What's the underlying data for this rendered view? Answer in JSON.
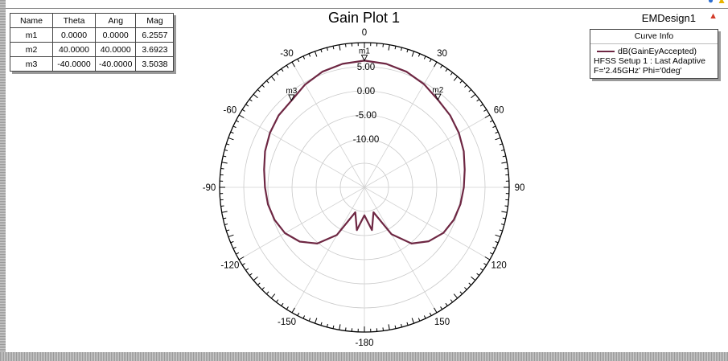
{
  "header": {
    "title": "Gain Plot 1",
    "design_name": "EMDesign1"
  },
  "marker_table": {
    "columns": [
      "Name",
      "Theta",
      "Ang",
      "Mag"
    ],
    "rows": [
      [
        "m1",
        "0.0000",
        "0.0000",
        "6.2557"
      ],
      [
        "m2",
        "40.0000",
        "40.0000",
        "3.6923"
      ],
      [
        "m3",
        "-40.0000",
        "-40.0000",
        "3.5038"
      ]
    ]
  },
  "legend": {
    "header": "Curve Info",
    "trace_name": "dB(GainEyAccepted)",
    "setup_line": "HFSS Setup 1 : Last Adaptive",
    "sweep_line": "F='2.45GHz' Phi='0deg'"
  },
  "chart_data": {
    "type": "polar",
    "title": "Gain Plot 1",
    "angle_unit": "deg",
    "angle_zero": "top",
    "angle_direction": "clockwise",
    "angle_ticks": [
      "0",
      "30",
      "60",
      "90",
      "120",
      "150",
      "-180",
      "-150",
      "-120",
      "-90",
      "-60",
      "-30"
    ],
    "angle_tick_values": [
      0,
      30,
      60,
      90,
      120,
      150,
      180,
      -150,
      -120,
      -90,
      -60,
      -30
    ],
    "radial_ticks": [
      "5.00",
      "0.00",
      "-5.00",
      "-10.00"
    ],
    "radial_tick_values": [
      5,
      0,
      -5,
      -10
    ],
    "rlim": [
      -20,
      10
    ],
    "grid": true,
    "series": [
      {
        "name": "dB(GainEyAccepted)",
        "color": "#6e2743",
        "theta": [
          -180,
          -170,
          -160,
          -150,
          -140,
          -130,
          -120,
          -110,
          -100,
          -90,
          -80,
          -70,
          -60,
          -50,
          -40,
          -30,
          -20,
          -10,
          0,
          10,
          20,
          30,
          40,
          50,
          60,
          70,
          80,
          90,
          100,
          110,
          120,
          130,
          140,
          150,
          160,
          170,
          180
        ],
        "gain_db": [
          -14.2,
          -11.0,
          -14.5,
          -8.6,
          -4.8,
          -2.5,
          -1.0,
          -0.2,
          0.3,
          0.6,
          1.1,
          1.9,
          2.6,
          3.2,
          3.5,
          4.6,
          5.5,
          6.0,
          6.26,
          6.0,
          5.5,
          4.7,
          3.69,
          3.2,
          2.6,
          1.9,
          1.1,
          0.6,
          0.2,
          -0.3,
          -1.1,
          -2.6,
          -4.8,
          -8.8,
          -14.5,
          -11.0,
          -14.2
        ]
      }
    ],
    "markers": [
      {
        "name": "m1",
        "theta": 0.0,
        "mag": 6.2557
      },
      {
        "name": "m2",
        "theta": 40.0,
        "mag": 3.6923
      },
      {
        "name": "m3",
        "theta": -40.0,
        "mag": 3.5038
      }
    ]
  }
}
